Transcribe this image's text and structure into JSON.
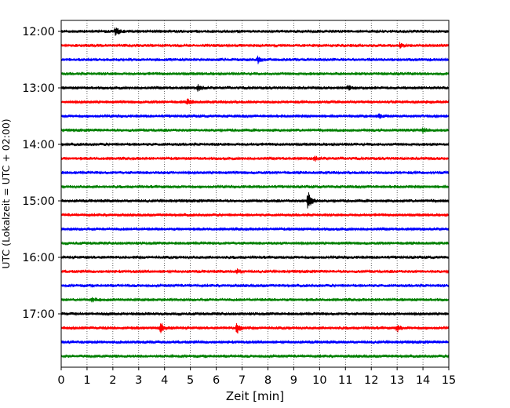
{
  "chart_data": {
    "type": "line",
    "title": "",
    "xlabel": "Zeit  [min]",
    "ylabel": "UTC (Lokalzeit = UTC + 02:00)",
    "xlim": [
      0,
      15
    ],
    "x_ticks": [
      0,
      1,
      2,
      3,
      4,
      5,
      6,
      7,
      8,
      9,
      10,
      11,
      12,
      13,
      14,
      15
    ],
    "y_ticks": [
      "12:00",
      "13:00",
      "14:00",
      "15:00",
      "16:00",
      "17:00"
    ],
    "y_tick_start_times": [
      "12:00",
      "12:15",
      "12:30",
      "12:45",
      "13:00",
      "13:15",
      "13:30",
      "13:45",
      "14:00",
      "14:15",
      "14:30",
      "14:45",
      "15:00",
      "15:15",
      "15:30",
      "15:45",
      "16:00",
      "16:15",
      "16:30",
      "16:45",
      "17:00",
      "17:15",
      "17:30",
      "17:45"
    ],
    "vertical_grid": "dotted",
    "color_cycle": [
      "#000000",
      "#ff0000",
      "#0000ff",
      "#008000"
    ],
    "events": [
      {
        "trace": 0,
        "t_min": 2.1,
        "amp": 6
      },
      {
        "trace": 1,
        "t_min": 13.1,
        "amp": 3
      },
      {
        "trace": 2,
        "t_min": 7.6,
        "amp": 5
      },
      {
        "trace": 4,
        "t_min": 5.3,
        "amp": 4
      },
      {
        "trace": 4,
        "t_min": 11.1,
        "amp": 3
      },
      {
        "trace": 5,
        "t_min": 4.9,
        "amp": 3
      },
      {
        "trace": 6,
        "t_min": 12.3,
        "amp": 2
      },
      {
        "trace": 7,
        "t_min": 14.0,
        "amp": 3
      },
      {
        "trace": 9,
        "t_min": 9.8,
        "amp": 3
      },
      {
        "trace": 12,
        "t_min": 9.55,
        "amp": 14
      },
      {
        "trace": 17,
        "t_min": 6.8,
        "amp": 3
      },
      {
        "trace": 19,
        "t_min": 1.2,
        "amp": 3
      },
      {
        "trace": 21,
        "t_min": 3.85,
        "amp": 8
      },
      {
        "trace": 21,
        "t_min": 6.8,
        "amp": 8
      },
      {
        "trace": 21,
        "t_min": 13.0,
        "amp": 5
      }
    ]
  }
}
